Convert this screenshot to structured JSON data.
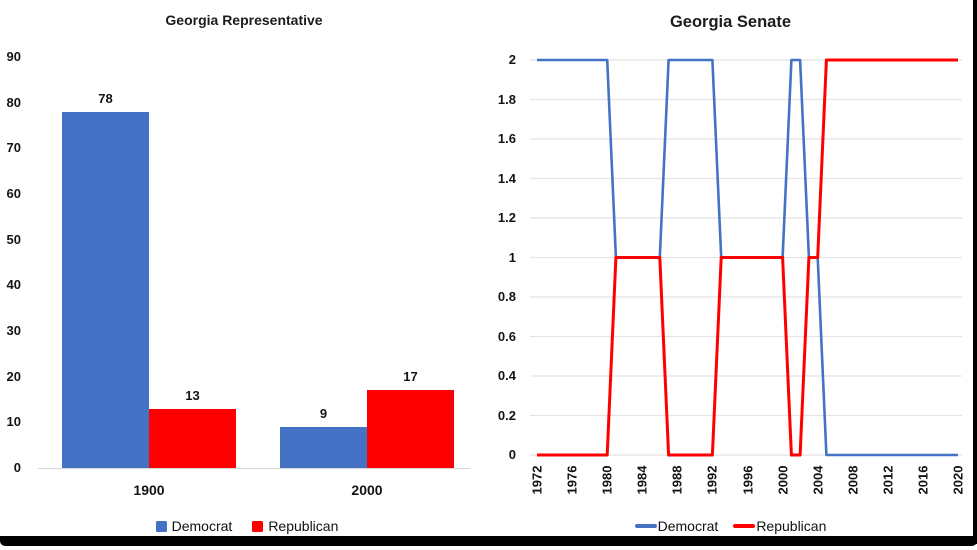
{
  "frame": {
    "background": "#FFFFFF",
    "border_color": "#000000"
  },
  "chart_data": [
    {
      "type": "bar",
      "title": "Georgia Representative",
      "categories": [
        "1900",
        "2000"
      ],
      "series": [
        {
          "name": "Democrat",
          "color": "#4472C4",
          "values": [
            78,
            9
          ]
        },
        {
          "name": "Republican",
          "color": "#FF0000",
          "values": [
            13,
            17
          ]
        }
      ],
      "xlabel": "",
      "ylabel": "",
      "ylim": [
        0,
        90
      ],
      "yticks": [
        0,
        10,
        20,
        30,
        40,
        50,
        60,
        70,
        80,
        90
      ],
      "grid": false,
      "data_labels": true,
      "legend_position": "bottom",
      "legend": [
        "Democrat",
        "Republican"
      ]
    },
    {
      "type": "line",
      "title": "Georgia Senate",
      "x": [
        1972,
        1973,
        1974,
        1975,
        1976,
        1977,
        1978,
        1979,
        1980,
        1981,
        1982,
        1983,
        1984,
        1985,
        1986,
        1987,
        1988,
        1989,
        1990,
        1991,
        1992,
        1993,
        1994,
        1995,
        1996,
        1997,
        1998,
        1999,
        2000,
        2001,
        2002,
        2003,
        2004,
        2005,
        2006,
        2007,
        2008,
        2009,
        2010,
        2011,
        2012,
        2013,
        2014,
        2015,
        2016,
        2017,
        2018,
        2019,
        2020
      ],
      "series": [
        {
          "name": "Democrat",
          "color": "#4472C4",
          "values": [
            2,
            2,
            2,
            2,
            2,
            2,
            2,
            2,
            2,
            1,
            1,
            1,
            1,
            1,
            1,
            2,
            2,
            2,
            2,
            2,
            2,
            1,
            1,
            1,
            1,
            1,
            1,
            1,
            1,
            2,
            2,
            1,
            1,
            0,
            0,
            0,
            0,
            0,
            0,
            0,
            0,
            0,
            0,
            0,
            0,
            0,
            0,
            0,
            0
          ]
        },
        {
          "name": "Republican",
          "color": "#FF0000",
          "values": [
            0,
            0,
            0,
            0,
            0,
            0,
            0,
            0,
            0,
            1,
            1,
            1,
            1,
            1,
            1,
            0,
            0,
            0,
            0,
            0,
            0,
            1,
            1,
            1,
            1,
            1,
            1,
            1,
            1,
            0,
            0,
            1,
            1,
            2,
            2,
            2,
            2,
            2,
            2,
            2,
            2,
            2,
            2,
            2,
            2,
            2,
            2,
            2,
            2
          ]
        }
      ],
      "xlabel": "",
      "ylabel": "",
      "ylim": [
        0,
        2
      ],
      "yticks": [
        "2",
        "1.8",
        "1.6",
        "1.4",
        "1.2",
        "1",
        "0.8",
        "0.6",
        "0.4",
        "0.2",
        "0"
      ],
      "xticks": [
        1972,
        1976,
        1980,
        1984,
        1988,
        1992,
        1996,
        2000,
        2004,
        2008,
        2012,
        2016,
        2020
      ],
      "grid": true,
      "legend_position": "bottom",
      "legend": [
        "Democrat",
        "Republican"
      ]
    }
  ]
}
